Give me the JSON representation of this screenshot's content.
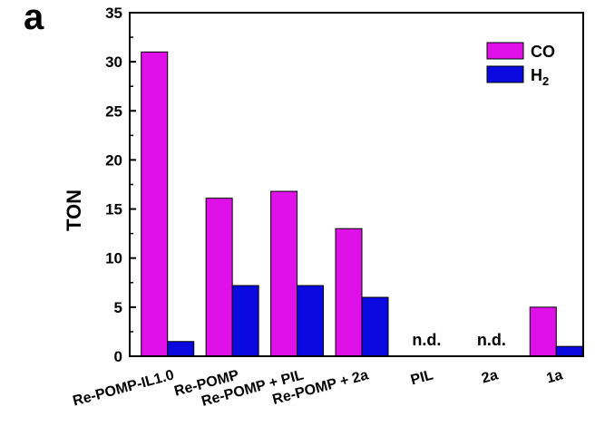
{
  "panel_label": "a",
  "chart_data": {
    "type": "bar",
    "categories": [
      "Re-POMP-IL1.0",
      "Re-POMP",
      "Re-POMP + PIL",
      "Re-POMP + 2a",
      "PIL",
      "2a",
      "1a"
    ],
    "series": [
      {
        "name": "CO",
        "values": [
          31,
          16.1,
          16.8,
          13,
          null,
          null,
          5
        ],
        "color": "#e010e8"
      },
      {
        "name": "H2",
        "values": [
          1.5,
          7.2,
          7.2,
          6,
          null,
          null,
          1
        ],
        "color": "#0a0ae0"
      }
    ],
    "annotations": [
      {
        "category": "PIL",
        "text": "n.d."
      },
      {
        "category": "2a",
        "text": "n.d."
      }
    ],
    "title": "",
    "xlabel": "",
    "ylabel": "TON",
    "ylim": [
      0,
      35
    ],
    "yticks": [
      0,
      5,
      10,
      15,
      20,
      25,
      30,
      35
    ],
    "grid": false,
    "legend_position": "top-right"
  }
}
